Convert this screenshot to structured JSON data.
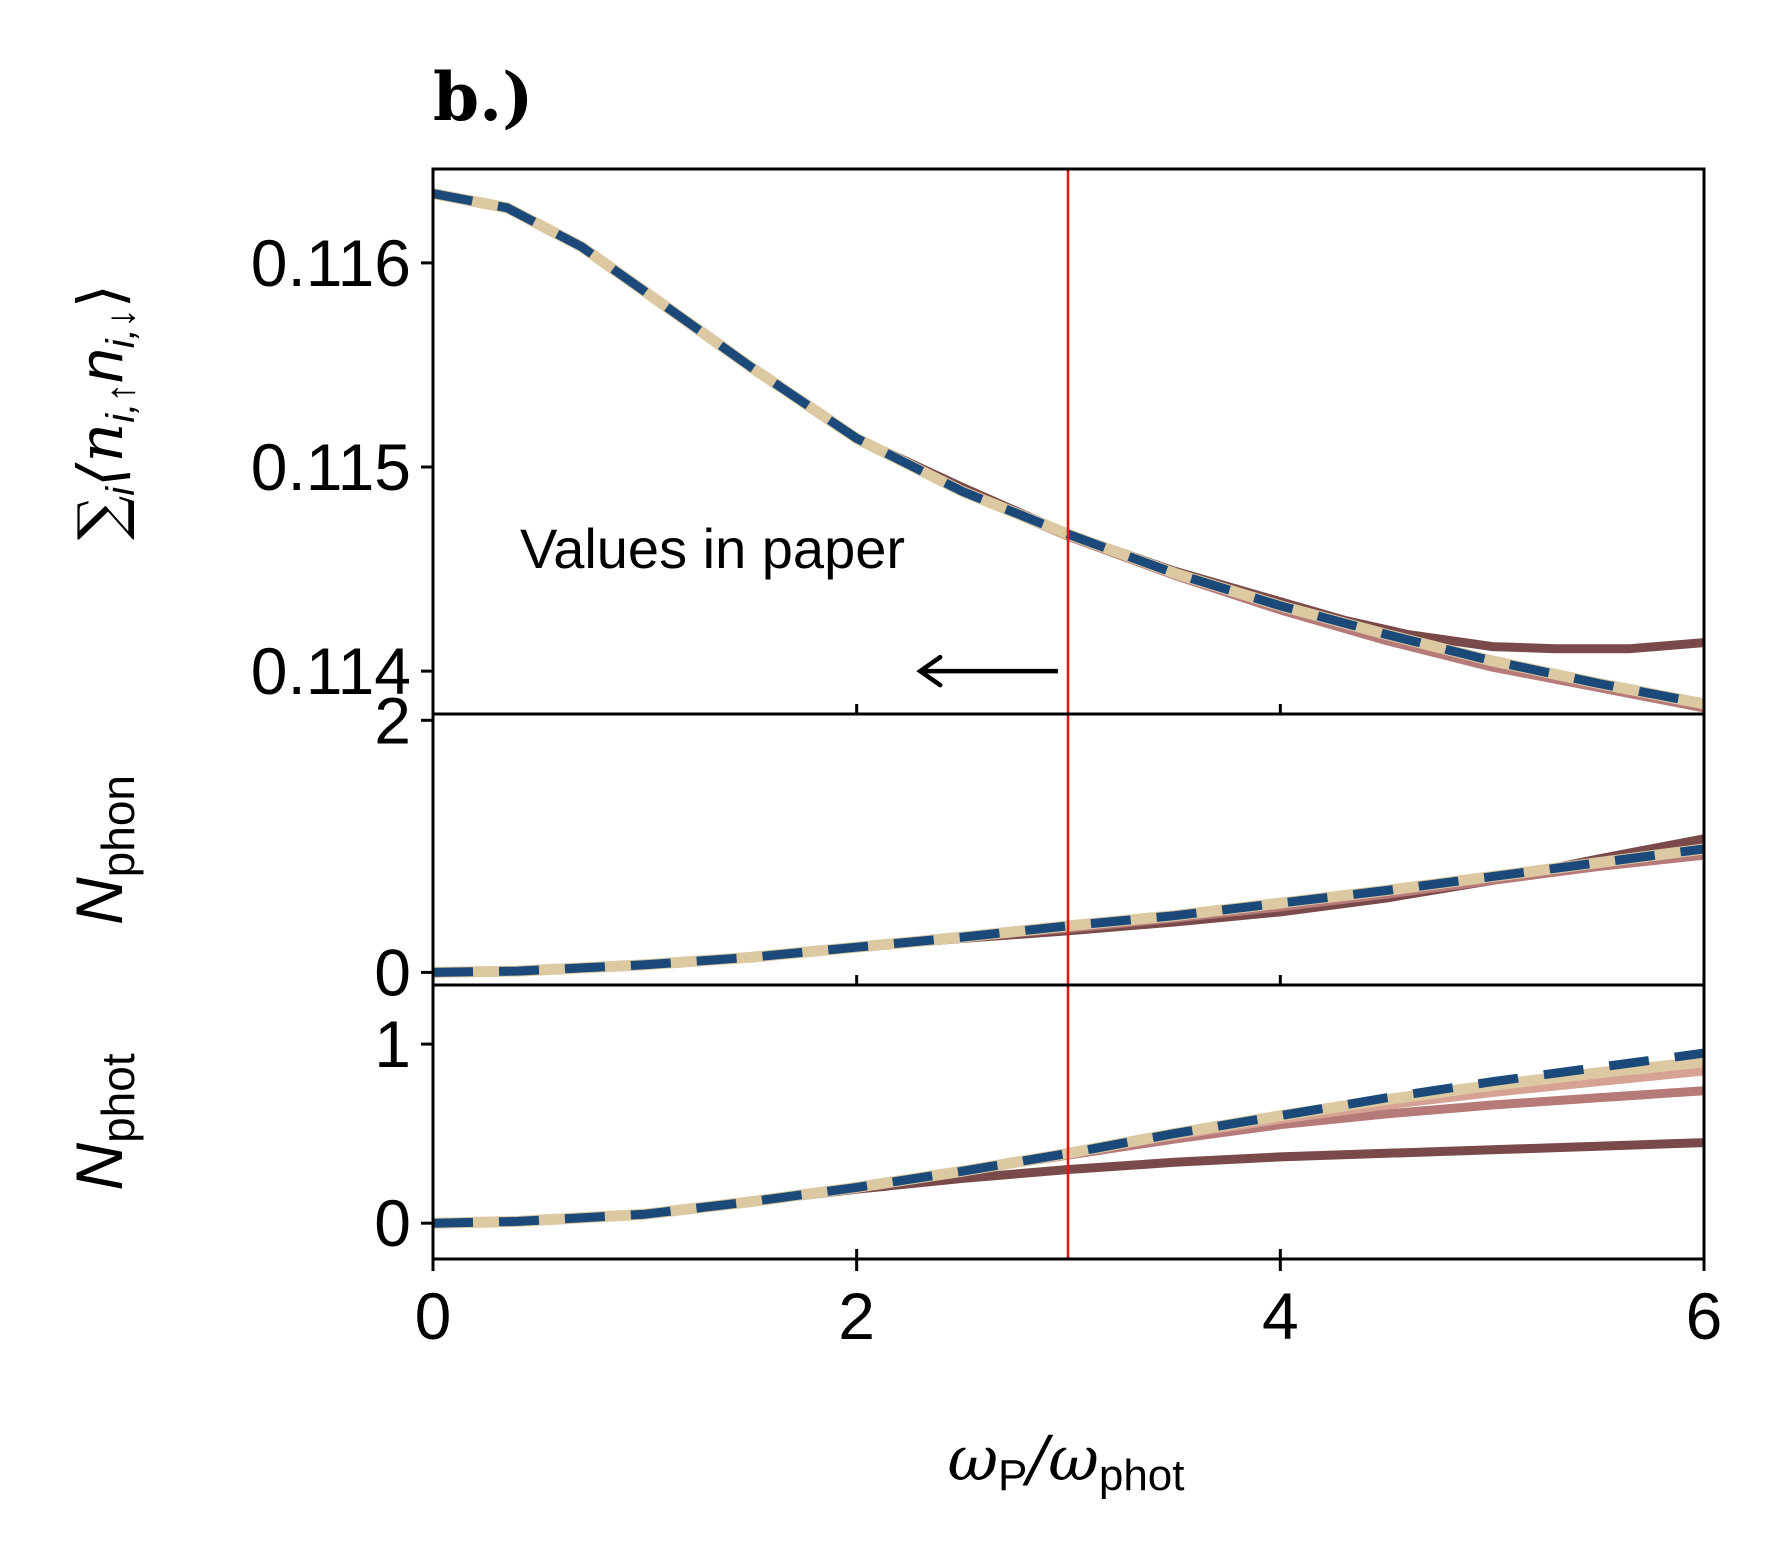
{
  "panel_label": "b.)",
  "annotation": "Values in paper",
  "x_axis": {
    "label_main": "ω",
    "label_sub1": "P",
    "label_sep": "/ω",
    "label_sub2": "phot"
  },
  "y_axes": {
    "top": {
      "prefix": "∑",
      "sub_i": "i",
      "body": "⟨n",
      "sub_a": "i,↑",
      "mid": "n",
      "sub_b": "i,↓",
      "close": "⟩"
    },
    "middle": {
      "main": "N",
      "sub": "phon"
    },
    "bottom": {
      "main": "N",
      "sub": "phot"
    }
  },
  "colors": {
    "dashed_series": "#1b4a7a",
    "light_series": "#dcc9a1",
    "dark_series": "#7a4a4a",
    "mid_series": "#b67a78",
    "pale_series": "#d6a293",
    "marker_line": "#e8140f"
  },
  "chart_data": [
    {
      "type": "line",
      "panel": "top",
      "xlim": [
        0,
        6
      ],
      "ylim": [
        0.11379,
        0.11646
      ],
      "yticks": [
        0.114,
        0.115,
        0.116
      ],
      "ytick_labels": [
        "0.114",
        "0.115",
        "0.116"
      ],
      "xticks": [
        0,
        2,
        4,
        6
      ],
      "vline_x": 3,
      "arrow": {
        "from_x": 2.95,
        "to_x": 2.3,
        "y": 0.114
      },
      "series": [
        {
          "style": "dark",
          "x": [
            0,
            0.35,
            0.7,
            1.0,
            1.5,
            2.0,
            2.5,
            3.0,
            3.5,
            4.0,
            4.3,
            4.6,
            5.0,
            5.3,
            5.65,
            6.0
          ],
          "y": [
            0.11634,
            0.11627,
            0.11608,
            0.11586,
            0.11549,
            0.11514,
            0.1149,
            0.11467,
            0.11449,
            0.11434,
            0.11425,
            0.11418,
            0.11412,
            0.11411,
            0.11411,
            0.11414
          ]
        },
        {
          "style": "mid",
          "x": [
            0,
            0.35,
            0.7,
            1.0,
            1.5,
            2.0,
            2.5,
            3.0,
            3.5,
            4.0,
            4.5,
            5.0,
            5.5,
            6.0
          ],
          "y": [
            0.11634,
            0.11627,
            0.11608,
            0.11586,
            0.11549,
            0.11514,
            0.11488,
            0.11466,
            0.11447,
            0.1143,
            0.11415,
            0.11402,
            0.11392,
            0.11382
          ]
        },
        {
          "style": "light",
          "x": [
            0,
            0.35,
            0.7,
            1.0,
            1.5,
            2.0,
            2.5,
            3.0,
            3.5,
            4.0,
            4.5,
            5.0,
            5.5,
            6.0
          ],
          "y": [
            0.11634,
            0.11627,
            0.11608,
            0.11586,
            0.11549,
            0.11514,
            0.11488,
            0.11467,
            0.11448,
            0.11432,
            0.11418,
            0.11405,
            0.11394,
            0.11384
          ]
        },
        {
          "style": "dashed",
          "x": [
            0,
            0.35,
            0.7,
            1.0,
            1.5,
            2.0,
            2.5,
            3.0,
            3.5,
            4.0,
            4.5,
            5.0,
            5.5,
            6.0
          ],
          "y": [
            0.11634,
            0.11627,
            0.11608,
            0.11586,
            0.11549,
            0.11514,
            0.11488,
            0.11467,
            0.11448,
            0.11432,
            0.11418,
            0.11405,
            0.11394,
            0.11384
          ]
        }
      ]
    },
    {
      "type": "line",
      "panel": "middle",
      "xlim": [
        0,
        6
      ],
      "ylim": [
        -0.1,
        2.05
      ],
      "yticks": [
        0,
        2
      ],
      "ytick_labels": [
        "0",
        "2"
      ],
      "xticks": [
        0,
        2,
        4,
        6
      ],
      "vline_x": 3,
      "series": [
        {
          "style": "dark",
          "x": [
            0,
            0.4,
            1.0,
            1.5,
            2.0,
            2.5,
            3.0,
            3.5,
            4.0,
            4.5,
            5.0,
            5.5,
            6.0
          ],
          "y": [
            0.0,
            0.01,
            0.06,
            0.12,
            0.2,
            0.27,
            0.33,
            0.4,
            0.48,
            0.59,
            0.73,
            0.9,
            1.06
          ]
        },
        {
          "style": "mid",
          "x": [
            0,
            0.4,
            1.0,
            1.5,
            2.0,
            2.5,
            3.0,
            3.5,
            4.0,
            4.5,
            5.0,
            5.5,
            6.0
          ],
          "y": [
            0.0,
            0.01,
            0.06,
            0.12,
            0.2,
            0.28,
            0.35,
            0.43,
            0.52,
            0.62,
            0.73,
            0.84,
            0.93
          ]
        },
        {
          "style": "light",
          "x": [
            0,
            0.4,
            1.0,
            1.5,
            2.0,
            2.5,
            3.0,
            3.5,
            4.0,
            4.5,
            5.0,
            5.5,
            6.0
          ],
          "y": [
            0.0,
            0.01,
            0.06,
            0.12,
            0.2,
            0.28,
            0.37,
            0.45,
            0.55,
            0.65,
            0.76,
            0.87,
            0.98
          ]
        },
        {
          "style": "dashed",
          "x": [
            0,
            0.4,
            1.0,
            1.5,
            2.0,
            2.5,
            3.0,
            3.5,
            4.0,
            4.5,
            5.0,
            5.5,
            6.0
          ],
          "y": [
            0.0,
            0.01,
            0.06,
            0.12,
            0.2,
            0.28,
            0.37,
            0.45,
            0.55,
            0.65,
            0.76,
            0.87,
            0.98
          ]
        }
      ]
    },
    {
      "type": "line",
      "panel": "bottom",
      "xlim": [
        0,
        6
      ],
      "ylim": [
        -0.2,
        1.33
      ],
      "yticks": [
        0,
        1
      ],
      "ytick_labels": [
        "0",
        "1"
      ],
      "xticks": [
        0,
        2,
        4,
        6
      ],
      "xtick_labels": [
        "0",
        "2",
        "4",
        "6"
      ],
      "vline_x": 3,
      "series": [
        {
          "style": "dark",
          "x": [
            0,
            0.4,
            1.0,
            1.5,
            2.0,
            2.5,
            3.0,
            3.5,
            4.0,
            4.5,
            5.0,
            5.5,
            6.0
          ],
          "y": [
            0.0,
            0.01,
            0.05,
            0.12,
            0.19,
            0.25,
            0.3,
            0.34,
            0.37,
            0.39,
            0.41,
            0.43,
            0.45
          ]
        },
        {
          "style": "mid",
          "x": [
            0,
            0.4,
            1.0,
            1.5,
            2.0,
            2.5,
            3.0,
            3.5,
            4.0,
            4.5,
            5.0,
            5.5,
            6.0
          ],
          "y": [
            0.0,
            0.01,
            0.05,
            0.12,
            0.2,
            0.29,
            0.38,
            0.47,
            0.55,
            0.61,
            0.66,
            0.7,
            0.74
          ]
        },
        {
          "style": "pale",
          "x": [
            0,
            0.4,
            1.0,
            1.5,
            2.0,
            2.5,
            3.0,
            3.5,
            4.0,
            4.5,
            5.0,
            5.5,
            6.0
          ],
          "y": [
            0.0,
            0.01,
            0.05,
            0.12,
            0.2,
            0.29,
            0.39,
            0.49,
            0.58,
            0.66,
            0.73,
            0.79,
            0.85
          ]
        },
        {
          "style": "light",
          "x": [
            0,
            0.4,
            1.0,
            1.5,
            2.0,
            2.5,
            3.0,
            3.5,
            4.0,
            4.5,
            5.0,
            5.5,
            6.0
          ],
          "y": [
            0.0,
            0.01,
            0.05,
            0.12,
            0.2,
            0.29,
            0.39,
            0.5,
            0.6,
            0.69,
            0.77,
            0.84,
            0.9
          ]
        },
        {
          "style": "dashed",
          "x": [
            0,
            0.4,
            1.0,
            1.5,
            2.0,
            2.5,
            3.0,
            3.5,
            4.0,
            4.5,
            5.0,
            5.5,
            6.0
          ],
          "y": [
            0.0,
            0.01,
            0.05,
            0.12,
            0.2,
            0.29,
            0.39,
            0.5,
            0.6,
            0.7,
            0.79,
            0.87,
            0.95
          ]
        }
      ]
    }
  ]
}
